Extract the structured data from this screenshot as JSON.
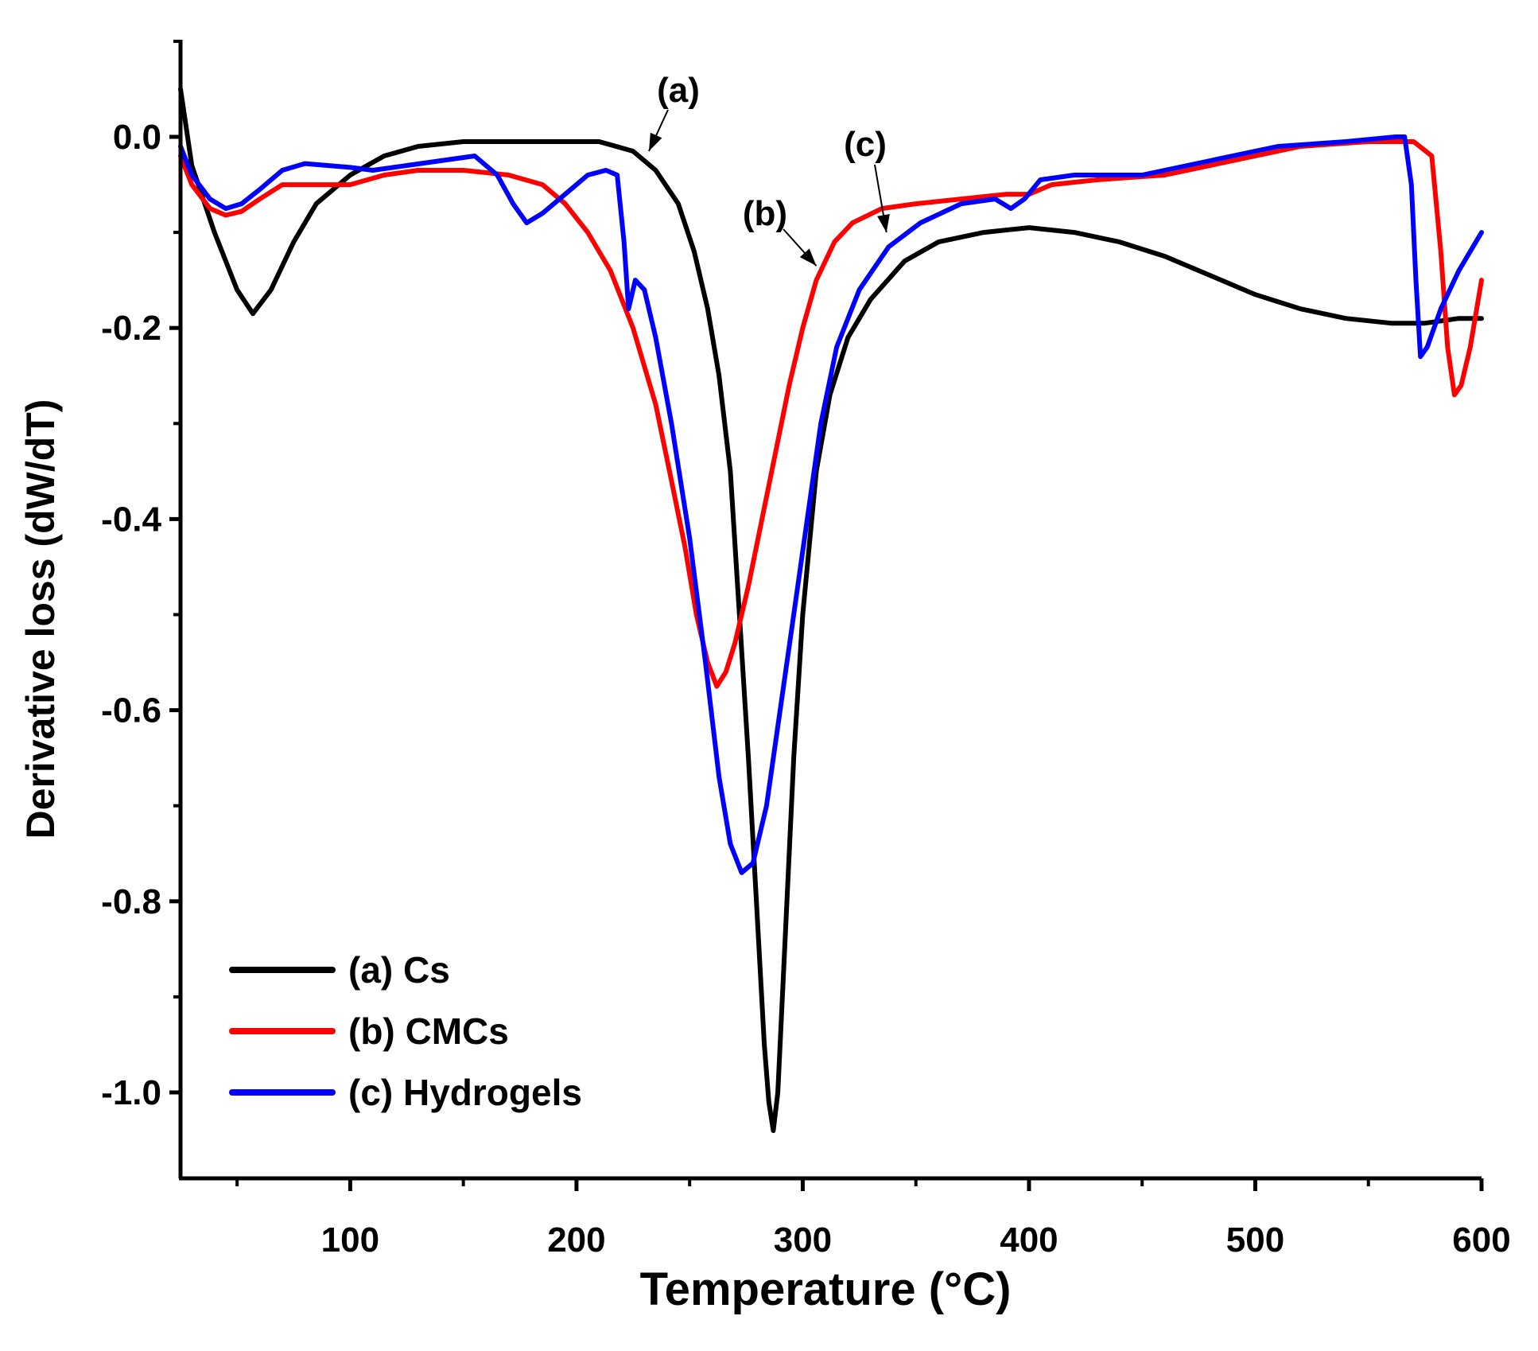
{
  "chart_data": {
    "type": "line",
    "title": "",
    "xlabel": "Temperature (°C)",
    "ylabel": "Derivative loss (dW/dT)",
    "xlim": [
      25,
      600
    ],
    "ylim": [
      -1.1,
      0.1
    ],
    "x_ticks": [
      100,
      200,
      300,
      400,
      500,
      600
    ],
    "y_ticks": [
      0.0,
      -0.2,
      -0.4,
      -0.6,
      -0.8,
      -1.0
    ],
    "x_tick_labels": [
      "100",
      "200",
      "300",
      "400",
      "500",
      "600"
    ],
    "y_tick_labels": [
      "0.0",
      "-0.2",
      "-0.4",
      "-0.6",
      "-0.8",
      "-1.0"
    ],
    "grid": false,
    "legend_position": "bottom-left",
    "series": [
      {
        "name": "(a) Cs",
        "color": "#000000",
        "points": [
          [
            25,
            0.05
          ],
          [
            30,
            -0.03
          ],
          [
            40,
            -0.1
          ],
          [
            50,
            -0.16
          ],
          [
            57,
            -0.185
          ],
          [
            65,
            -0.16
          ],
          [
            75,
            -0.11
          ],
          [
            85,
            -0.07
          ],
          [
            100,
            -0.04
          ],
          [
            115,
            -0.02
          ],
          [
            130,
            -0.01
          ],
          [
            150,
            -0.005
          ],
          [
            170,
            -0.005
          ],
          [
            190,
            -0.005
          ],
          [
            210,
            -0.005
          ],
          [
            225,
            -0.015
          ],
          [
            235,
            -0.035
          ],
          [
            245,
            -0.07
          ],
          [
            252,
            -0.12
          ],
          [
            258,
            -0.18
          ],
          [
            263,
            -0.25
          ],
          [
            268,
            -0.35
          ],
          [
            272,
            -0.5
          ],
          [
            276,
            -0.65
          ],
          [
            280,
            -0.82
          ],
          [
            283,
            -0.95
          ],
          [
            285,
            -1.01
          ],
          [
            287,
            -1.04
          ],
          [
            289,
            -1.0
          ],
          [
            292,
            -0.85
          ],
          [
            296,
            -0.65
          ],
          [
            300,
            -0.5
          ],
          [
            306,
            -0.35
          ],
          [
            312,
            -0.27
          ],
          [
            320,
            -0.21
          ],
          [
            330,
            -0.17
          ],
          [
            345,
            -0.13
          ],
          [
            360,
            -0.11
          ],
          [
            380,
            -0.1
          ],
          [
            400,
            -0.095
          ],
          [
            420,
            -0.1
          ],
          [
            440,
            -0.11
          ],
          [
            460,
            -0.125
          ],
          [
            480,
            -0.145
          ],
          [
            500,
            -0.165
          ],
          [
            520,
            -0.18
          ],
          [
            540,
            -0.19
          ],
          [
            560,
            -0.195
          ],
          [
            575,
            -0.195
          ],
          [
            590,
            -0.19
          ],
          [
            600,
            -0.19
          ]
        ]
      },
      {
        "name": "(b) CMCs",
        "color": "#ff0000",
        "points": [
          [
            25,
            -0.02
          ],
          [
            30,
            -0.05
          ],
          [
            38,
            -0.075
          ],
          [
            45,
            -0.082
          ],
          [
            52,
            -0.078
          ],
          [
            60,
            -0.065
          ],
          [
            70,
            -0.05
          ],
          [
            80,
            -0.05
          ],
          [
            90,
            -0.05
          ],
          [
            100,
            -0.05
          ],
          [
            115,
            -0.04
          ],
          [
            130,
            -0.035
          ],
          [
            150,
            -0.035
          ],
          [
            170,
            -0.04
          ],
          [
            185,
            -0.05
          ],
          [
            195,
            -0.07
          ],
          [
            205,
            -0.1
          ],
          [
            215,
            -0.14
          ],
          [
            225,
            -0.2
          ],
          [
            235,
            -0.28
          ],
          [
            242,
            -0.36
          ],
          [
            248,
            -0.43
          ],
          [
            253,
            -0.5
          ],
          [
            258,
            -0.55
          ],
          [
            262,
            -0.575
          ],
          [
            266,
            -0.56
          ],
          [
            270,
            -0.53
          ],
          [
            276,
            -0.47
          ],
          [
            282,
            -0.4
          ],
          [
            288,
            -0.33
          ],
          [
            294,
            -0.26
          ],
          [
            300,
            -0.2
          ],
          [
            306,
            -0.15
          ],
          [
            314,
            -0.11
          ],
          [
            322,
            -0.09
          ],
          [
            335,
            -0.075
          ],
          [
            350,
            -0.07
          ],
          [
            370,
            -0.065
          ],
          [
            390,
            -0.06
          ],
          [
            400,
            -0.06
          ],
          [
            410,
            -0.05
          ],
          [
            430,
            -0.045
          ],
          [
            460,
            -0.04
          ],
          [
            490,
            -0.025
          ],
          [
            520,
            -0.01
          ],
          [
            550,
            -0.005
          ],
          [
            570,
            -0.005
          ],
          [
            578,
            -0.02
          ],
          [
            582,
            -0.12
          ],
          [
            585,
            -0.22
          ],
          [
            588,
            -0.27
          ],
          [
            591,
            -0.26
          ],
          [
            595,
            -0.22
          ],
          [
            600,
            -0.15
          ]
        ]
      },
      {
        "name": "(c) Hydrogels",
        "color": "#0000ff",
        "points": [
          [
            25,
            -0.01
          ],
          [
            30,
            -0.04
          ],
          [
            38,
            -0.065
          ],
          [
            45,
            -0.075
          ],
          [
            52,
            -0.07
          ],
          [
            60,
            -0.055
          ],
          [
            70,
            -0.035
          ],
          [
            80,
            -0.028
          ],
          [
            90,
            -0.03
          ],
          [
            100,
            -0.032
          ],
          [
            110,
            -0.035
          ],
          [
            125,
            -0.03
          ],
          [
            140,
            -0.025
          ],
          [
            155,
            -0.02
          ],
          [
            165,
            -0.04
          ],
          [
            172,
            -0.07
          ],
          [
            178,
            -0.09
          ],
          [
            185,
            -0.08
          ],
          [
            195,
            -0.06
          ],
          [
            205,
            -0.04
          ],
          [
            213,
            -0.035
          ],
          [
            218,
            -0.04
          ],
          [
            221,
            -0.11
          ],
          [
            223,
            -0.18
          ],
          [
            226,
            -0.15
          ],
          [
            230,
            -0.16
          ],
          [
            235,
            -0.21
          ],
          [
            242,
            -0.3
          ],
          [
            250,
            -0.42
          ],
          [
            257,
            -0.55
          ],
          [
            263,
            -0.67
          ],
          [
            268,
            -0.74
          ],
          [
            273,
            -0.77
          ],
          [
            278,
            -0.76
          ],
          [
            284,
            -0.7
          ],
          [
            290,
            -0.6
          ],
          [
            296,
            -0.5
          ],
          [
            302,
            -0.4
          ],
          [
            308,
            -0.3
          ],
          [
            315,
            -0.22
          ],
          [
            325,
            -0.16
          ],
          [
            338,
            -0.115
          ],
          [
            352,
            -0.09
          ],
          [
            370,
            -0.07
          ],
          [
            385,
            -0.065
          ],
          [
            392,
            -0.075
          ],
          [
            398,
            -0.065
          ],
          [
            405,
            -0.045
          ],
          [
            420,
            -0.04
          ],
          [
            450,
            -0.04
          ],
          [
            480,
            -0.025
          ],
          [
            510,
            -0.01
          ],
          [
            540,
            -0.005
          ],
          [
            562,
            0.0
          ],
          [
            566,
            0.0
          ],
          [
            569,
            -0.05
          ],
          [
            571,
            -0.15
          ],
          [
            573,
            -0.23
          ],
          [
            576,
            -0.22
          ],
          [
            582,
            -0.18
          ],
          [
            590,
            -0.14
          ],
          [
            600,
            -0.1
          ]
        ]
      }
    ],
    "annotations": [
      {
        "label": "(a)",
        "point": [
          232,
          -0.015
        ]
      },
      {
        "label": "(b)",
        "point": [
          306,
          -0.135
        ]
      },
      {
        "label": "(c)",
        "point": [
          337,
          -0.1
        ]
      }
    ]
  }
}
